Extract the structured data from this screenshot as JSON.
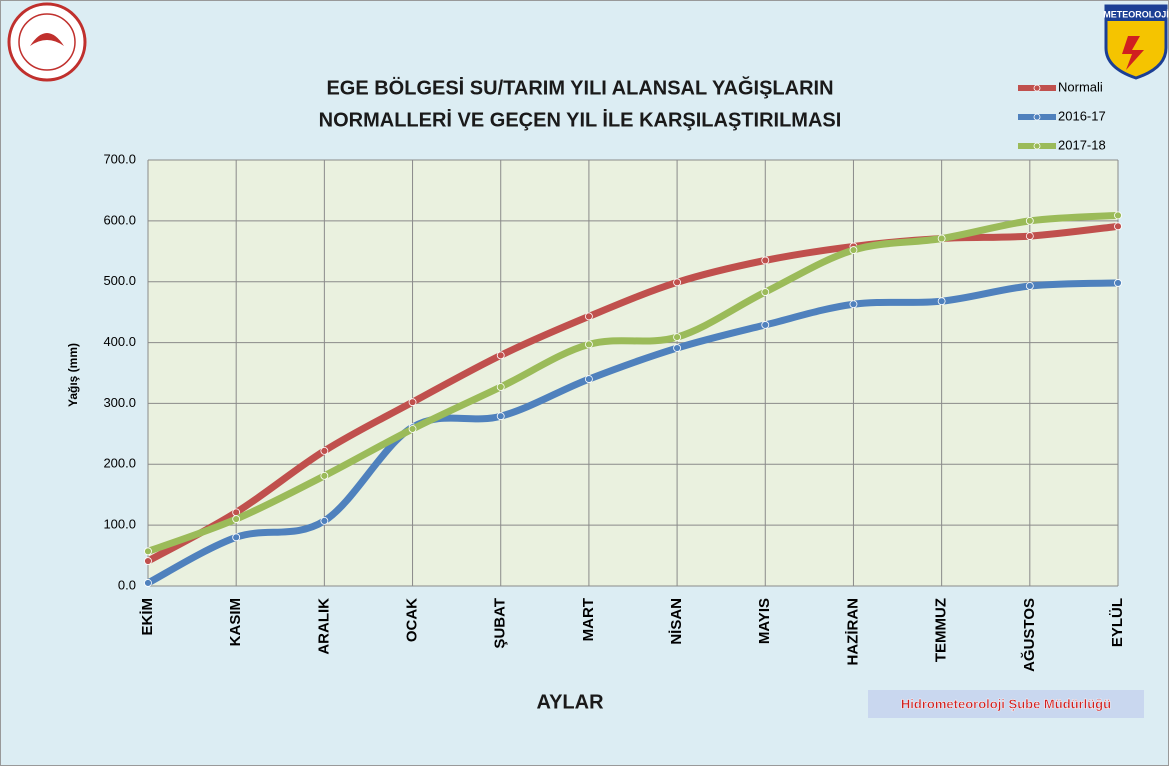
{
  "chart_data": {
    "type": "line",
    "title": [
      "EGE BÖLGESİ  SU/TARIM YILI ALANSAL YAĞIŞLARIN",
      "NORMALLERİ VE GEÇEN YIL İLE KARŞILAŞTIRILMASI"
    ],
    "x_label": "AYLAR",
    "y_label": "Yağış (mm)",
    "footer": "Hidrometeoroloji  Şube  Müdürlüğü",
    "logo_text": "METEOROLOJİ",
    "categories": [
      "EKİM",
      "KASIM",
      "ARALIK",
      "OCAK",
      "ŞUBAT",
      "MART",
      "NİSAN",
      "MAYIS",
      "HAZİRAN",
      "TEMMUZ",
      "AĞUSTOS",
      "EYLÜL"
    ],
    "series": [
      {
        "name": "Normali",
        "color": "#c0504d",
        "values": [
          41,
          121,
          222,
          302,
          379,
          443,
          499,
          535,
          558,
          571,
          575,
          591
        ]
      },
      {
        "name": "2016-17",
        "color": "#4f81bd",
        "values": [
          5,
          80,
          107,
          261,
          279,
          340,
          391,
          429,
          463,
          468,
          493,
          498
        ]
      },
      {
        "name": "2017-18",
        "color": "#9bbb59",
        "values": [
          57,
          110,
          181,
          258,
          327,
          397,
          409,
          483,
          552,
          571,
          600,
          609
        ]
      }
    ],
    "ylim": [
      0,
      700
    ],
    "yticks": [
      {
        "value": 0,
        "label": "0.0"
      },
      {
        "value": 100,
        "label": "100.0"
      },
      {
        "value": 200,
        "label": "200.0"
      },
      {
        "value": 300,
        "label": "300.0"
      },
      {
        "value": 400,
        "label": "400.0"
      },
      {
        "value": 500,
        "label": "500.0"
      },
      {
        "value": 600,
        "label": "600.0"
      },
      {
        "value": 700,
        "label": "700.0"
      }
    ],
    "grid": true,
    "legend": "top-right",
    "smooth": true
  }
}
